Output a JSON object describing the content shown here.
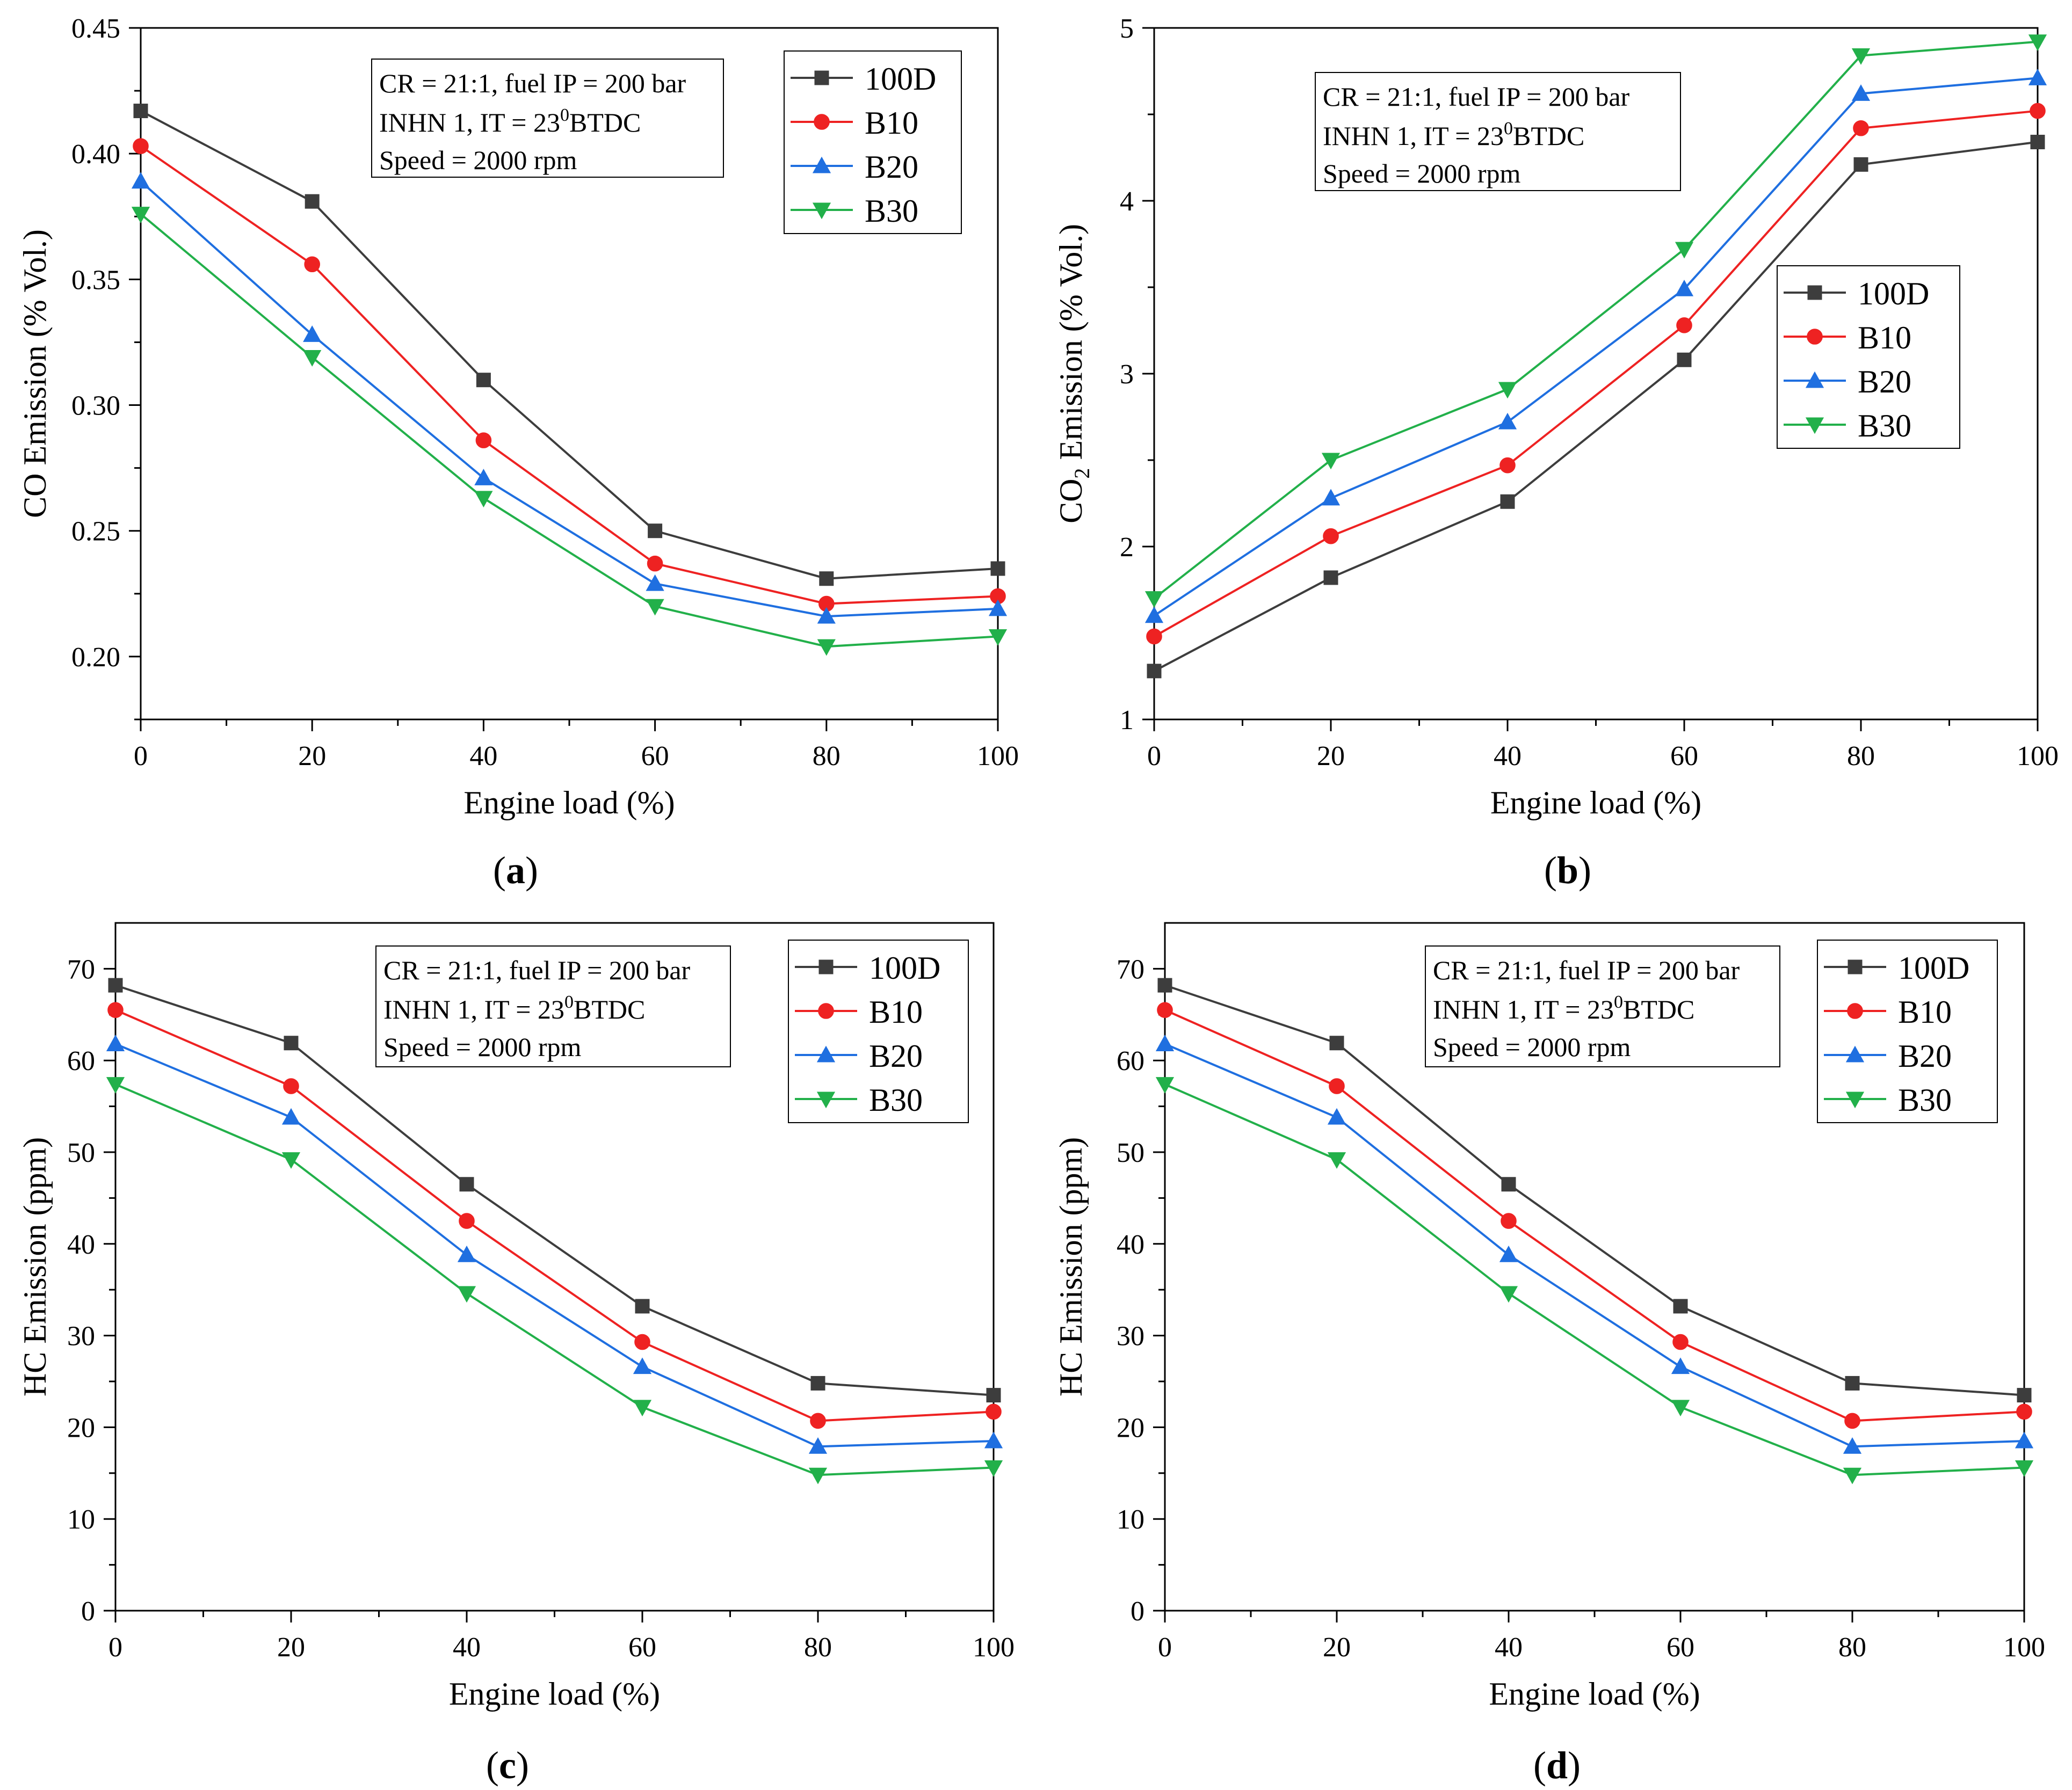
{
  "figure": {
    "panels": [
      {
        "id": "a",
        "caption_letter": "a"
      },
      {
        "id": "b",
        "caption_letter": "b"
      },
      {
        "id": "c",
        "caption_letter": "c"
      },
      {
        "id": "d",
        "caption_letter": "d"
      }
    ]
  },
  "annotation": {
    "line1": "CR = 21:1, fuel IP = 200 bar",
    "line2_prefix": "INHN 1, IT = 23",
    "line2_sup": "0",
    "line2_suffix": "BTDC",
    "line3": "Speed = 2000 rpm"
  },
  "colors": {
    "100D": "#3d3d3d",
    "B10": "#ee2222",
    "B20": "#1f6fe0",
    "B30": "#22b04a"
  },
  "chart_data": [
    {
      "type": "line",
      "panel": "a",
      "title": "",
      "xlabel": "Engine load (%)",
      "ylabel": "CO Emission (% Vol.)",
      "xlim": [
        0,
        100
      ],
      "ylim": [
        0.175,
        0.45
      ],
      "xticks": [
        "0",
        "20",
        "40",
        "60",
        "80",
        "100"
      ],
      "yticks": [
        "0.20",
        "0.25",
        "0.30",
        "0.35",
        "0.40",
        "0.45"
      ],
      "ytick_values": [
        0.2,
        0.25,
        0.3,
        0.35,
        0.4,
        0.45
      ],
      "legend_position": "top-right",
      "x": [
        0,
        20,
        40,
        60,
        80,
        100
      ],
      "series": [
        {
          "name": "100D",
          "marker": "square",
          "values": [
            0.417,
            0.381,
            0.31,
            0.25,
            0.231,
            0.235
          ]
        },
        {
          "name": "B10",
          "marker": "circle",
          "values": [
            0.403,
            0.356,
            0.286,
            0.237,
            0.221,
            0.224
          ]
        },
        {
          "name": "B20",
          "marker": "triangle-up",
          "values": [
            0.389,
            0.328,
            0.271,
            0.229,
            0.216,
            0.219
          ]
        },
        {
          "name": "B30",
          "marker": "triangle-down",
          "values": [
            0.376,
            0.319,
            0.263,
            0.22,
            0.204,
            0.208
          ]
        }
      ]
    },
    {
      "type": "line",
      "panel": "b",
      "title": "",
      "xlabel": "Engine load (%)",
      "ylabel_main": "CO",
      "ylabel_sub": "2",
      "ylabel_rest": " Emission (% Vol.)",
      "xlim": [
        0,
        100
      ],
      "ylim": [
        1,
        5
      ],
      "xticks": [
        "0",
        "20",
        "40",
        "60",
        "80",
        "100"
      ],
      "yticks": [
        "1",
        "2",
        "3",
        "4",
        "5"
      ],
      "ytick_values": [
        1,
        2,
        3,
        4,
        5
      ],
      "legend_position": "center-right",
      "x": [
        0,
        20,
        40,
        60,
        80,
        100
      ],
      "series": [
        {
          "name": "100D",
          "marker": "square",
          "values": [
            1.28,
            1.82,
            2.26,
            3.08,
            4.21,
            4.34
          ]
        },
        {
          "name": "B10",
          "marker": "circle",
          "values": [
            1.48,
            2.06,
            2.47,
            3.28,
            4.42,
            4.52
          ]
        },
        {
          "name": "B20",
          "marker": "triangle-up",
          "values": [
            1.6,
            2.28,
            2.72,
            3.49,
            4.62,
            4.71
          ]
        },
        {
          "name": "B30",
          "marker": "triangle-down",
          "values": [
            1.7,
            2.5,
            2.91,
            3.72,
            4.84,
            4.92
          ]
        }
      ]
    },
    {
      "type": "line",
      "panel": "c",
      "title": "",
      "xlabel": "Engine load (%)",
      "ylabel": "HC Emission (ppm)",
      "xlim": [
        0,
        100
      ],
      "ylim": [
        0,
        75
      ],
      "xticks": [
        "0",
        "20",
        "40",
        "60",
        "80",
        "100"
      ],
      "yticks": [
        "0",
        "10",
        "20",
        "30",
        "40",
        "50",
        "60",
        "70"
      ],
      "ytick_values": [
        0,
        10,
        20,
        30,
        40,
        50,
        60,
        70
      ],
      "legend_position": "top-right",
      "x": [
        0,
        20,
        40,
        60,
        80,
        100
      ],
      "series": [
        {
          "name": "100D",
          "marker": "square",
          "values": [
            68.2,
            61.9,
            46.5,
            33.2,
            24.8,
            23.5
          ]
        },
        {
          "name": "B10",
          "marker": "circle",
          "values": [
            65.5,
            57.2,
            42.5,
            29.3,
            20.7,
            21.7
          ]
        },
        {
          "name": "B20",
          "marker": "triangle-up",
          "values": [
            61.8,
            53.8,
            38.8,
            26.6,
            17.9,
            18.5
          ]
        },
        {
          "name": "B30",
          "marker": "triangle-down",
          "values": [
            57.4,
            49.2,
            34.6,
            22.2,
            14.8,
            15.6
          ]
        }
      ]
    },
    {
      "type": "line",
      "panel": "d",
      "title": "",
      "xlabel": "Engine load (%)",
      "ylabel": "HC Emission (ppm)",
      "xlim": [
        0,
        100
      ],
      "ylim": [
        0,
        75
      ],
      "xticks": [
        "0",
        "20",
        "40",
        "60",
        "80",
        "100"
      ],
      "yticks": [
        "0",
        "10",
        "20",
        "30",
        "40",
        "50",
        "60",
        "70"
      ],
      "ytick_values": [
        0,
        10,
        20,
        30,
        40,
        50,
        60,
        70
      ],
      "legend_position": "top-right",
      "x": [
        0,
        20,
        40,
        60,
        80,
        100
      ],
      "series": [
        {
          "name": "100D",
          "marker": "square",
          "values": [
            68.2,
            61.9,
            46.5,
            33.2,
            24.8,
            23.5
          ]
        },
        {
          "name": "B10",
          "marker": "circle",
          "values": [
            65.5,
            57.2,
            42.5,
            29.3,
            20.7,
            21.7
          ]
        },
        {
          "name": "B20",
          "marker": "triangle-up",
          "values": [
            61.8,
            53.8,
            38.8,
            26.6,
            17.9,
            18.5
          ]
        },
        {
          "name": "B30",
          "marker": "triangle-down",
          "values": [
            57.4,
            49.2,
            34.6,
            22.2,
            14.8,
            15.6
          ]
        }
      ]
    }
  ]
}
